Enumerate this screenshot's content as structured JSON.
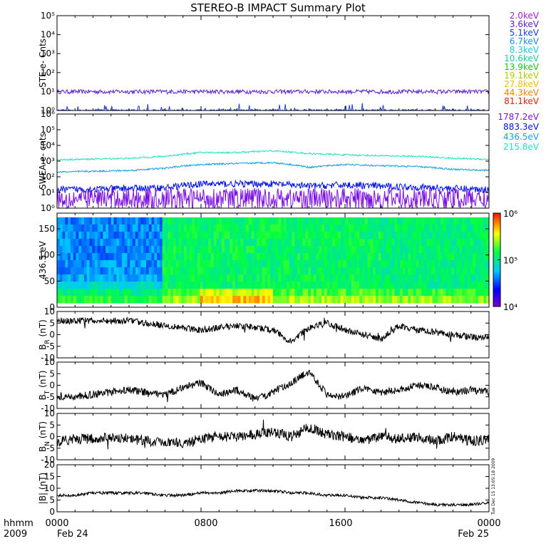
{
  "title": "STEREO-B IMPACT Summary Plot",
  "footer": {
    "left_top": "hhmm",
    "left_bottom": "2009",
    "ticks": [
      "0000",
      "0800",
      "1600",
      "0000"
    ],
    "dates": [
      "Feb 24",
      "Feb 25"
    ]
  },
  "timestamp": "Tue Dec 15 13:05:18 2009",
  "colors": {
    "2.0keV": "#9a20d0",
    "3.6keV": "#5a20d0",
    "5.1keV": "#1a3ae0",
    "6.7keV": "#1a8ee0",
    "8.3keV": "#1ac8d8",
    "10.6keV": "#10d0a0",
    "13.9keV": "#20c020",
    "19.1keV": "#b0c800",
    "27.8keV": "#f0c000",
    "44.3keV": "#f08000",
    "81.1keV": "#e02000",
    "1787.2eV": "#7a10e0",
    "883.3eV": "#0010e0",
    "436.5eV": "#10a0e0",
    "215.8eV": "#20e0c0"
  },
  "chart_data": [
    {
      "type": "line",
      "panel": "ste",
      "ylabel": "STE e- Cnts",
      "yscale": "log",
      "ylim": [
        1,
        100000
      ],
      "yticks": [
        "10⁰",
        "10¹",
        "10²",
        "10³",
        "10⁴",
        "10⁵"
      ],
      "legend": [
        "2.0keV",
        "3.6keV",
        "5.1keV",
        "6.7keV",
        "8.3keV",
        "10.6keV",
        "13.9keV",
        "19.1keV",
        "27.8keV",
        "44.3keV",
        "81.1keV"
      ],
      "series": [
        {
          "name": "3.6keV",
          "level": 10
        },
        {
          "name": "5.1keV",
          "level": 1
        }
      ]
    },
    {
      "type": "line",
      "panel": "swea",
      "ylabel": "SWEA e- cnts",
      "yscale": "log",
      "ylim": [
        1,
        1000000
      ],
      "yticks": [
        "10⁰",
        "10¹",
        "10²",
        "10³",
        "10⁴",
        "10⁵",
        "10⁶"
      ],
      "legend": [
        "1787.2eV",
        "883.3eV",
        "436.5eV",
        "215.8eV"
      ],
      "series": [
        {
          "name": "215.8eV",
          "x": [
            0,
            4,
            6,
            8,
            10,
            12,
            14,
            16,
            18,
            20,
            22,
            24
          ],
          "values": [
            1200,
            1500,
            2000,
            3500,
            3500,
            4500,
            3000,
            2500,
            2200,
            2000,
            1500,
            1300
          ]
        },
        {
          "name": "436.5eV",
          "x": [
            0,
            4,
            6,
            8,
            10,
            12,
            14,
            16,
            18,
            20,
            22,
            24
          ],
          "values": [
            200,
            250,
            350,
            600,
            700,
            800,
            400,
            600,
            500,
            450,
            300,
            250
          ]
        },
        {
          "name": "883.3eV",
          "x": [
            0,
            4,
            6,
            8,
            10,
            12,
            14,
            16,
            18,
            20,
            22,
            24
          ],
          "values": [
            15,
            18,
            20,
            35,
            35,
            35,
            25,
            30,
            25,
            22,
            18,
            15
          ]
        },
        {
          "name": "1787.2eV",
          "x": [
            0,
            24
          ],
          "values": [
            4,
            4
          ]
        }
      ]
    },
    {
      "type": "heatmap",
      "panel": "pad",
      "ylabel": "436.5 eV",
      "ylim": [
        0,
        180
      ],
      "yticks": [
        "0",
        "50",
        "100",
        "150"
      ],
      "colorbar": {
        "min": 10000,
        "max": 1000000,
        "ticks": [
          "10⁴",
          "10⁵",
          "10⁶"
        ]
      }
    },
    {
      "type": "line",
      "panel": "br",
      "ylabel": "B",
      "ylabel_sub": "R",
      "ylabel_unit": " (nT)",
      "ylim": [
        -10,
        10
      ],
      "yticks": [
        "-10",
        "-5",
        "0",
        "5",
        "10"
      ],
      "x": [
        0,
        1,
        2,
        3,
        4,
        5,
        6,
        7,
        8,
        9,
        10,
        11,
        12,
        13,
        14,
        15,
        16,
        17,
        18,
        19,
        20,
        21,
        22,
        23,
        24
      ],
      "values": [
        6,
        6,
        6,
        6,
        6,
        5,
        4,
        3,
        2,
        3,
        4,
        3,
        2,
        -3,
        3,
        5,
        2,
        0,
        -2,
        4,
        2,
        1,
        0,
        -1,
        -1
      ]
    },
    {
      "type": "line",
      "panel": "bt",
      "ylabel": "B",
      "ylabel_sub": "T",
      "ylabel_unit": " (nT)",
      "ylim": [
        -10,
        10
      ],
      "yticks": [
        "-10",
        "-5",
        "0",
        "5",
        "10"
      ],
      "x": [
        0,
        1,
        2,
        3,
        4,
        5,
        6,
        7,
        8,
        9,
        10,
        11,
        12,
        13,
        14,
        15,
        16,
        17,
        18,
        19,
        20,
        21,
        22,
        23,
        24
      ],
      "values": [
        -5,
        -5,
        -4,
        -3,
        -2,
        -3,
        -4,
        -1,
        1,
        -4,
        -2,
        -6,
        -3,
        1,
        6,
        -4,
        -5,
        -1,
        -3,
        -2,
        0,
        -1,
        -3,
        -2,
        -3
      ]
    },
    {
      "type": "line",
      "panel": "bn",
      "ylabel": "B",
      "ylabel_sub": "N",
      "ylabel_unit": " (nT)",
      "ylim": [
        -10,
        10
      ],
      "yticks": [
        "-10",
        "-5",
        "0",
        "5",
        "10"
      ],
      "x": [
        0,
        1,
        2,
        3,
        4,
        5,
        6,
        7,
        8,
        9,
        10,
        11,
        12,
        13,
        14,
        15,
        16,
        17,
        18,
        19,
        20,
        21,
        22,
        23,
        24
      ],
      "values": [
        -2,
        -1,
        -1,
        0,
        -1,
        -2,
        -2,
        -3,
        -1,
        0,
        0,
        1,
        2,
        0,
        4,
        1,
        0,
        -2,
        0,
        -1,
        0,
        -2,
        0,
        -2,
        -1
      ]
    },
    {
      "type": "line",
      "panel": "bmag",
      "ylabel": "|B| (nT)",
      "ylim": [
        0,
        20
      ],
      "yticks": [
        "0",
        "5",
        "10",
        "15",
        "20"
      ],
      "x": [
        0,
        1,
        2,
        3,
        4,
        5,
        6,
        7,
        8,
        9,
        10,
        11,
        12,
        13,
        14,
        15,
        16,
        17,
        18,
        19,
        20,
        21,
        22,
        23,
        24
      ],
      "values": [
        7,
        7,
        8,
        8,
        8,
        8,
        7,
        7,
        8,
        8,
        9,
        9,
        9,
        8,
        8,
        7,
        7,
        6,
        6,
        5,
        4,
        3,
        3,
        3,
        4
      ]
    }
  ]
}
